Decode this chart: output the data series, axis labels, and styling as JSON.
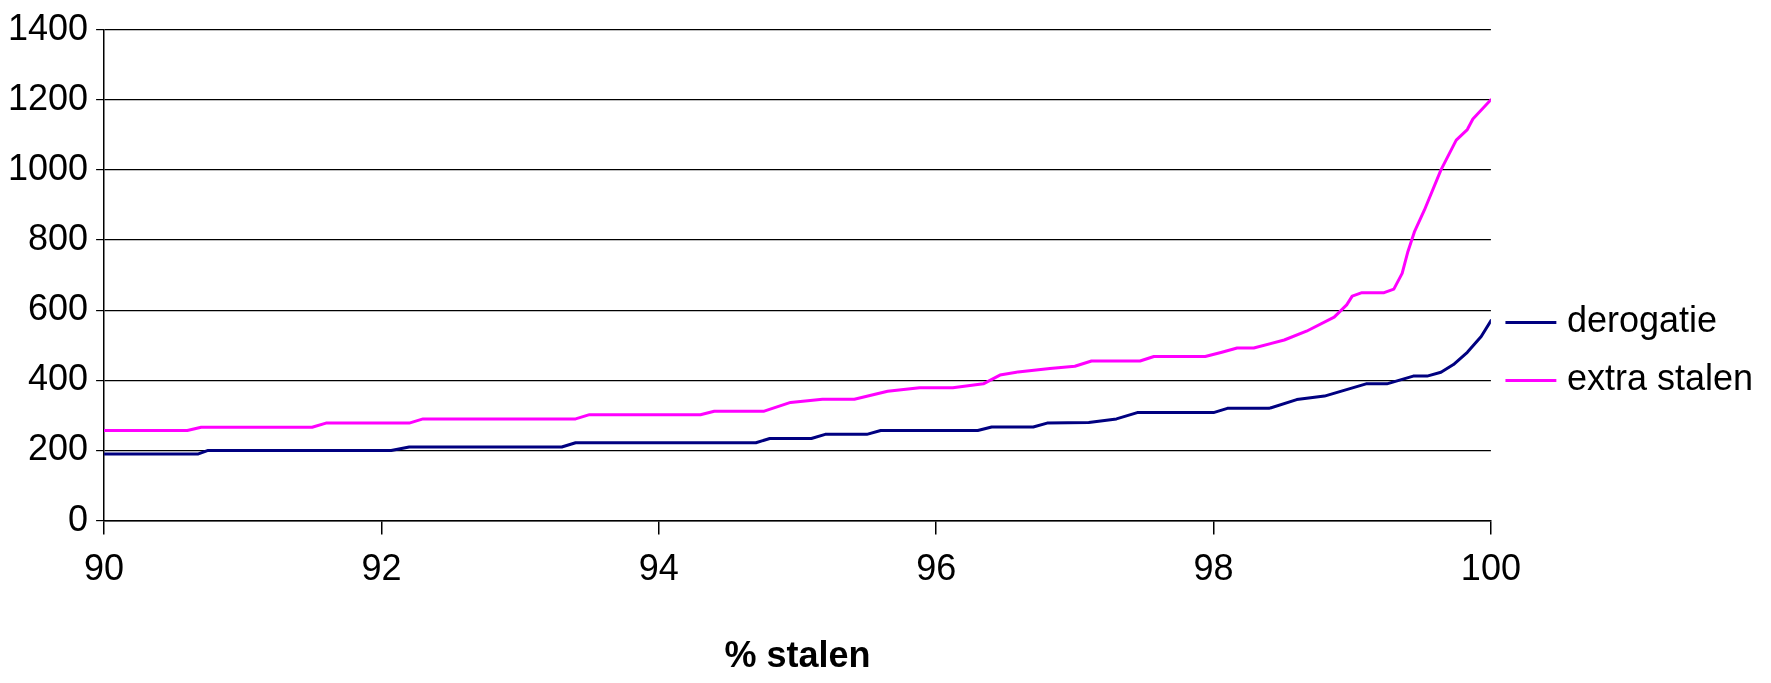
{
  "chart_data": {
    "type": "line",
    "xlabel": "% stalen",
    "xlim": [
      90,
      100
    ],
    "xticks": [
      90,
      92,
      94,
      96,
      98,
      100
    ],
    "ylim": [
      0,
      1400
    ],
    "yticks": [
      0,
      200,
      400,
      600,
      800,
      1000,
      1200,
      1400
    ],
    "grid": "y",
    "legend": "right",
    "marker": "none",
    "line_style": "solid",
    "series": [
      {
        "name": "derogatie",
        "color": "#000080",
        "x": [
          90,
          90.68,
          90.75,
          92.07,
          92.2,
          93.3,
          93.4,
          94.7,
          94.8,
          95.1,
          95.2,
          95.5,
          95.6,
          96.3,
          96.4,
          96.7,
          96.8,
          97.1,
          97.3,
          97.45,
          98.0,
          98.1,
          98.4,
          98.6,
          98.8,
          99.1,
          99.25,
          99.44,
          99.54,
          99.64,
          99.73,
          99.83,
          99.93,
          100
        ],
        "values": [
          190,
          190,
          200,
          200,
          210,
          210,
          222,
          222,
          234,
          234,
          246,
          246,
          257,
          257,
          267,
          267,
          278,
          280,
          290,
          308,
          308,
          320,
          320,
          345,
          355,
          390,
          390,
          412,
          412,
          423,
          445,
          480,
          525,
          570
        ]
      },
      {
        "name": "extra stalen",
        "color": "#ff00ff",
        "x": [
          90,
          90.6,
          90.7,
          91.5,
          91.6,
          92.2,
          92.3,
          93.4,
          93.5,
          94.3,
          94.4,
          94.76,
          94.95,
          95.18,
          95.41,
          95.65,
          95.88,
          96.12,
          96.34,
          96.46,
          96.59,
          96.82,
          97.0,
          97.12,
          97.47,
          97.57,
          97.94,
          98.06,
          98.17,
          98.29,
          98.51,
          98.67,
          98.87,
          98.96,
          99.0,
          99.07,
          99.23,
          99.3,
          99.36,
          99.4,
          99.45,
          99.52,
          99.64,
          99.75,
          99.83,
          99.87,
          100
        ],
        "values": [
          257,
          257,
          266,
          266,
          278,
          278,
          290,
          290,
          302,
          302,
          312,
          312,
          337,
          346,
          346,
          369,
          379,
          379,
          390,
          415,
          424,
          434,
          440,
          455,
          455,
          468,
          468,
          480,
          492,
          492,
          515,
          540,
          580,
          615,
          640,
          650,
          650,
          660,
          705,
          765,
          825,
          885,
          1000,
          1085,
          1115,
          1145,
          1200
        ]
      }
    ]
  }
}
